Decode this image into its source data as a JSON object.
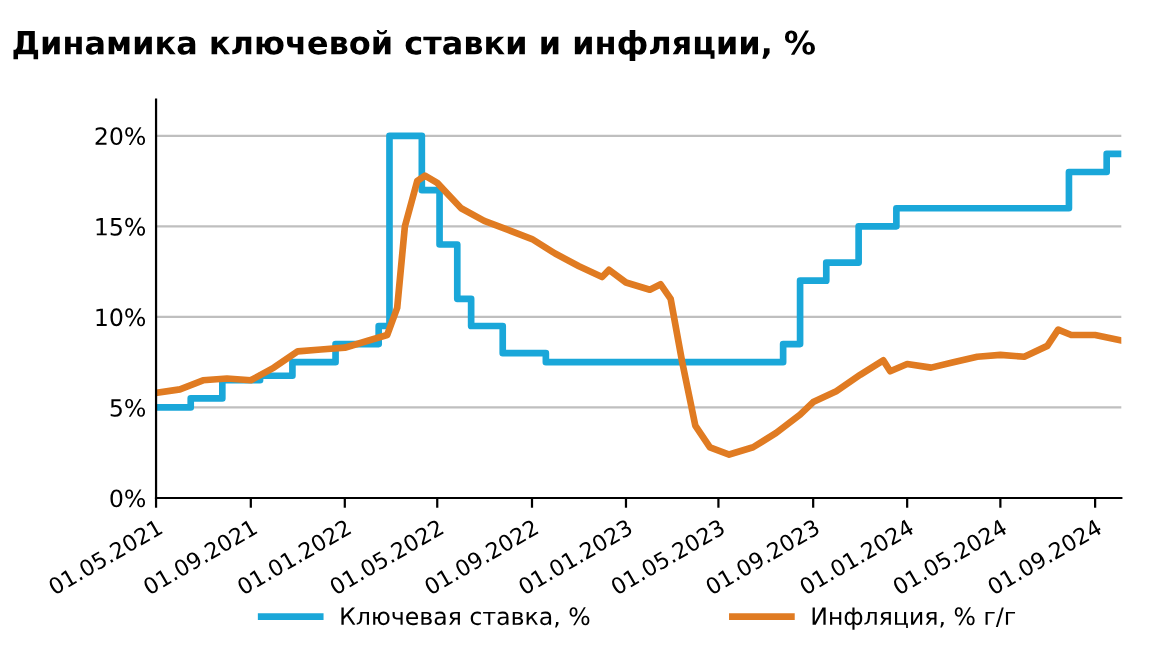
{
  "chart_data": {
    "type": "line",
    "title": "Динамика ключевой ставки и инфляции, %",
    "xlim": [
      "2021-05-01",
      "2024-10-05"
    ],
    "xticks": [
      {
        "value": "2021-05-01",
        "label": "01.05.2021"
      },
      {
        "value": "2021-09-01",
        "label": "01.09.2021"
      },
      {
        "value": "2022-01-01",
        "label": "01.01.2022"
      },
      {
        "value": "2022-05-01",
        "label": "01.05.2022"
      },
      {
        "value": "2022-09-01",
        "label": "01.09.2022"
      },
      {
        "value": "2023-01-01",
        "label": "01.01.2023"
      },
      {
        "value": "2023-05-01",
        "label": "01.05.2023"
      },
      {
        "value": "2023-09-01",
        "label": "01.09.2023"
      },
      {
        "value": "2024-01-01",
        "label": "01.01.2024"
      },
      {
        "value": "2024-05-01",
        "label": "01.05.2024"
      },
      {
        "value": "2024-09-01",
        "label": "01.09.2024"
      }
    ],
    "ylim": [
      0,
      22
    ],
    "yticks": [
      {
        "value": 0,
        "label": "0%"
      },
      {
        "value": 5,
        "label": "5%"
      },
      {
        "value": 10,
        "label": "10%"
      },
      {
        "value": 15,
        "label": "15%"
      },
      {
        "value": 20,
        "label": "20%"
      }
    ],
    "grid": "y",
    "legend": "bottom",
    "marker": "none",
    "line_style": "solid",
    "series": [
      {
        "name": "Ключевая ставка, %",
        "type": "step",
        "color": "#1aa7d9",
        "x": [
          "2021-05-01",
          "2021-06-15",
          "2021-07-26",
          "2021-09-13",
          "2021-10-25",
          "2021-12-20",
          "2022-02-14",
          "2022-02-28",
          "2022-04-11",
          "2022-05-04",
          "2022-05-27",
          "2022-06-14",
          "2022-07-25",
          "2022-09-19",
          "2023-07-24",
          "2023-08-15",
          "2023-09-18",
          "2023-10-30",
          "2023-12-18",
          "2024-07-29",
          "2024-09-16",
          "2024-10-05"
        ],
        "values": [
          5,
          5.5,
          6.5,
          6.75,
          7.5,
          8.5,
          9.5,
          20,
          17,
          14,
          11,
          9.5,
          8,
          7.5,
          8.5,
          12,
          13,
          15,
          16,
          18,
          19,
          19
        ]
      },
      {
        "name": "Инфляция, % г/г",
        "color": "#e07b22",
        "x": [
          "2021-05-01",
          "2021-06-01",
          "2021-07-01",
          "2021-08-01",
          "2021-09-01",
          "2021-10-01",
          "2021-11-01",
          "2021-12-01",
          "2022-01-01",
          "2022-02-01",
          "2022-02-25",
          "2022-03-10",
          "2022-03-20",
          "2022-04-05",
          "2022-04-15",
          "2022-05-01",
          "2022-06-01",
          "2022-07-01",
          "2022-08-01",
          "2022-09-01",
          "2022-10-01",
          "2022-11-01",
          "2022-12-01",
          "2022-12-10",
          "2023-01-01",
          "2023-02-01",
          "2023-02-15",
          "2023-02-28",
          "2023-03-15",
          "2023-04-01",
          "2023-04-20",
          "2023-05-15",
          "2023-06-15",
          "2023-07-15",
          "2023-08-15",
          "2023-09-01",
          "2023-10-01",
          "2023-11-01",
          "2023-12-01",
          "2023-12-10",
          "2024-01-01",
          "2024-02-01",
          "2024-03-01",
          "2024-04-01",
          "2024-05-01",
          "2024-06-01",
          "2024-07-01",
          "2024-07-15",
          "2024-08-01",
          "2024-09-01",
          "2024-10-05"
        ],
        "values": [
          5.8,
          6.0,
          6.5,
          6.6,
          6.5,
          7.2,
          8.1,
          8.2,
          8.3,
          8.7,
          9.0,
          10.5,
          15,
          17.5,
          17.8,
          17.4,
          16,
          15.3,
          14.8,
          14.3,
          13.5,
          12.8,
          12.2,
          12.6,
          11.9,
          11.5,
          11.8,
          11,
          7.5,
          4,
          2.8,
          2.4,
          2.8,
          3.6,
          4.6,
          5.3,
          5.9,
          6.8,
          7.6,
          7.0,
          7.4,
          7.2,
          7.5,
          7.8,
          7.9,
          7.8,
          8.4,
          9.3,
          9.0,
          9.0,
          8.7
        ]
      }
    ]
  }
}
